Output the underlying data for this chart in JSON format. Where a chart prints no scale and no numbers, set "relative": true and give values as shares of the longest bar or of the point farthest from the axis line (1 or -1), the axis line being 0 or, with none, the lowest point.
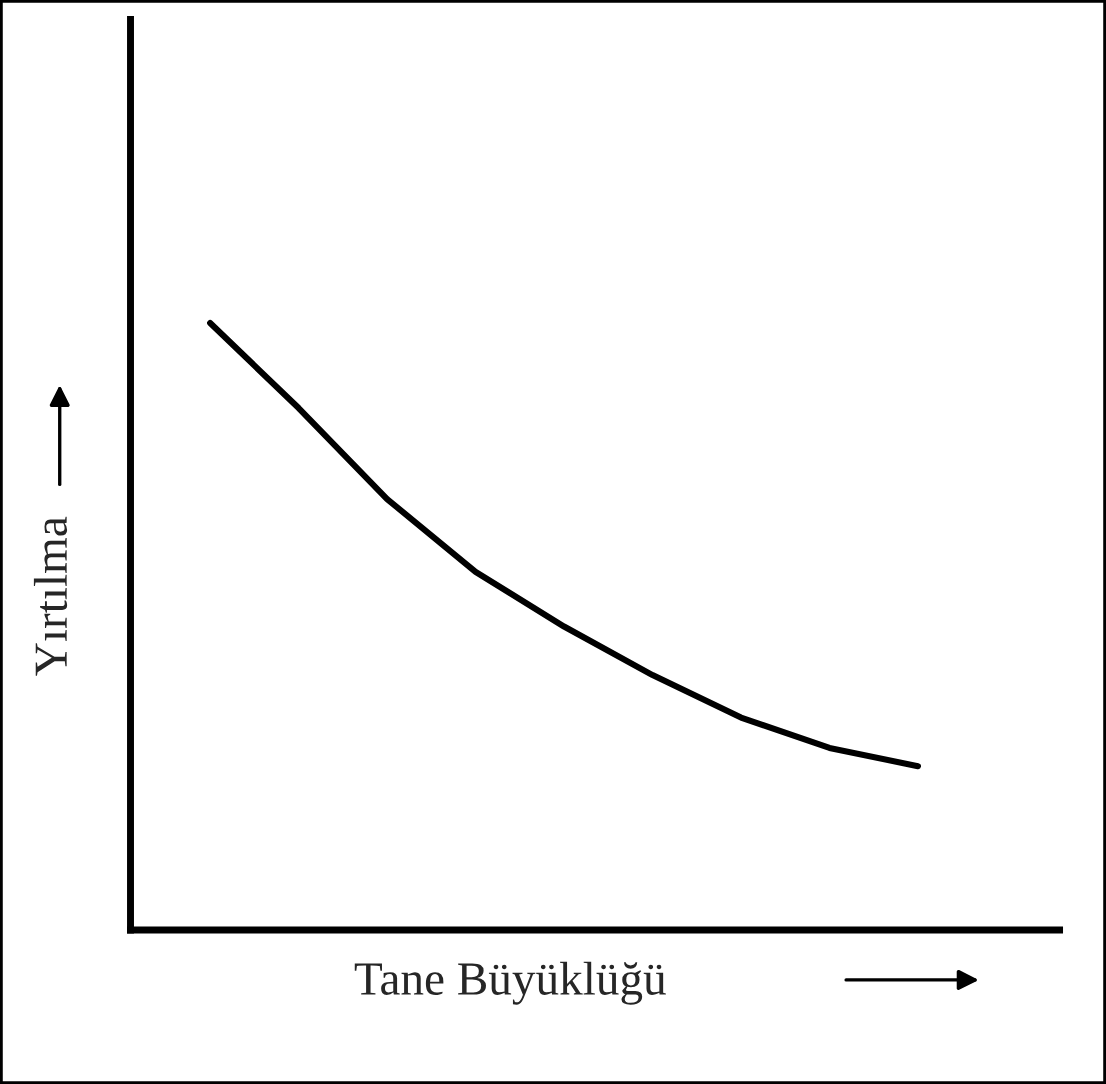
{
  "chart_data": {
    "type": "line",
    "relative": true,
    "xlabel": "Tane Büyüklüğü",
    "ylabel": "Yırtılma",
    "categories": [
      null,
      null,
      null,
      null,
      null,
      null,
      null,
      null,
      null
    ],
    "series": [
      {
        "color": "#000000",
        "values": [
          1,
          0.86,
          0.71,
          0.59,
          0.5,
          0.42,
          0.35,
          0.3,
          0.27
        ]
      }
    ],
    "grid": false,
    "legend": false,
    "marker": "none",
    "line_style": "solid"
  }
}
